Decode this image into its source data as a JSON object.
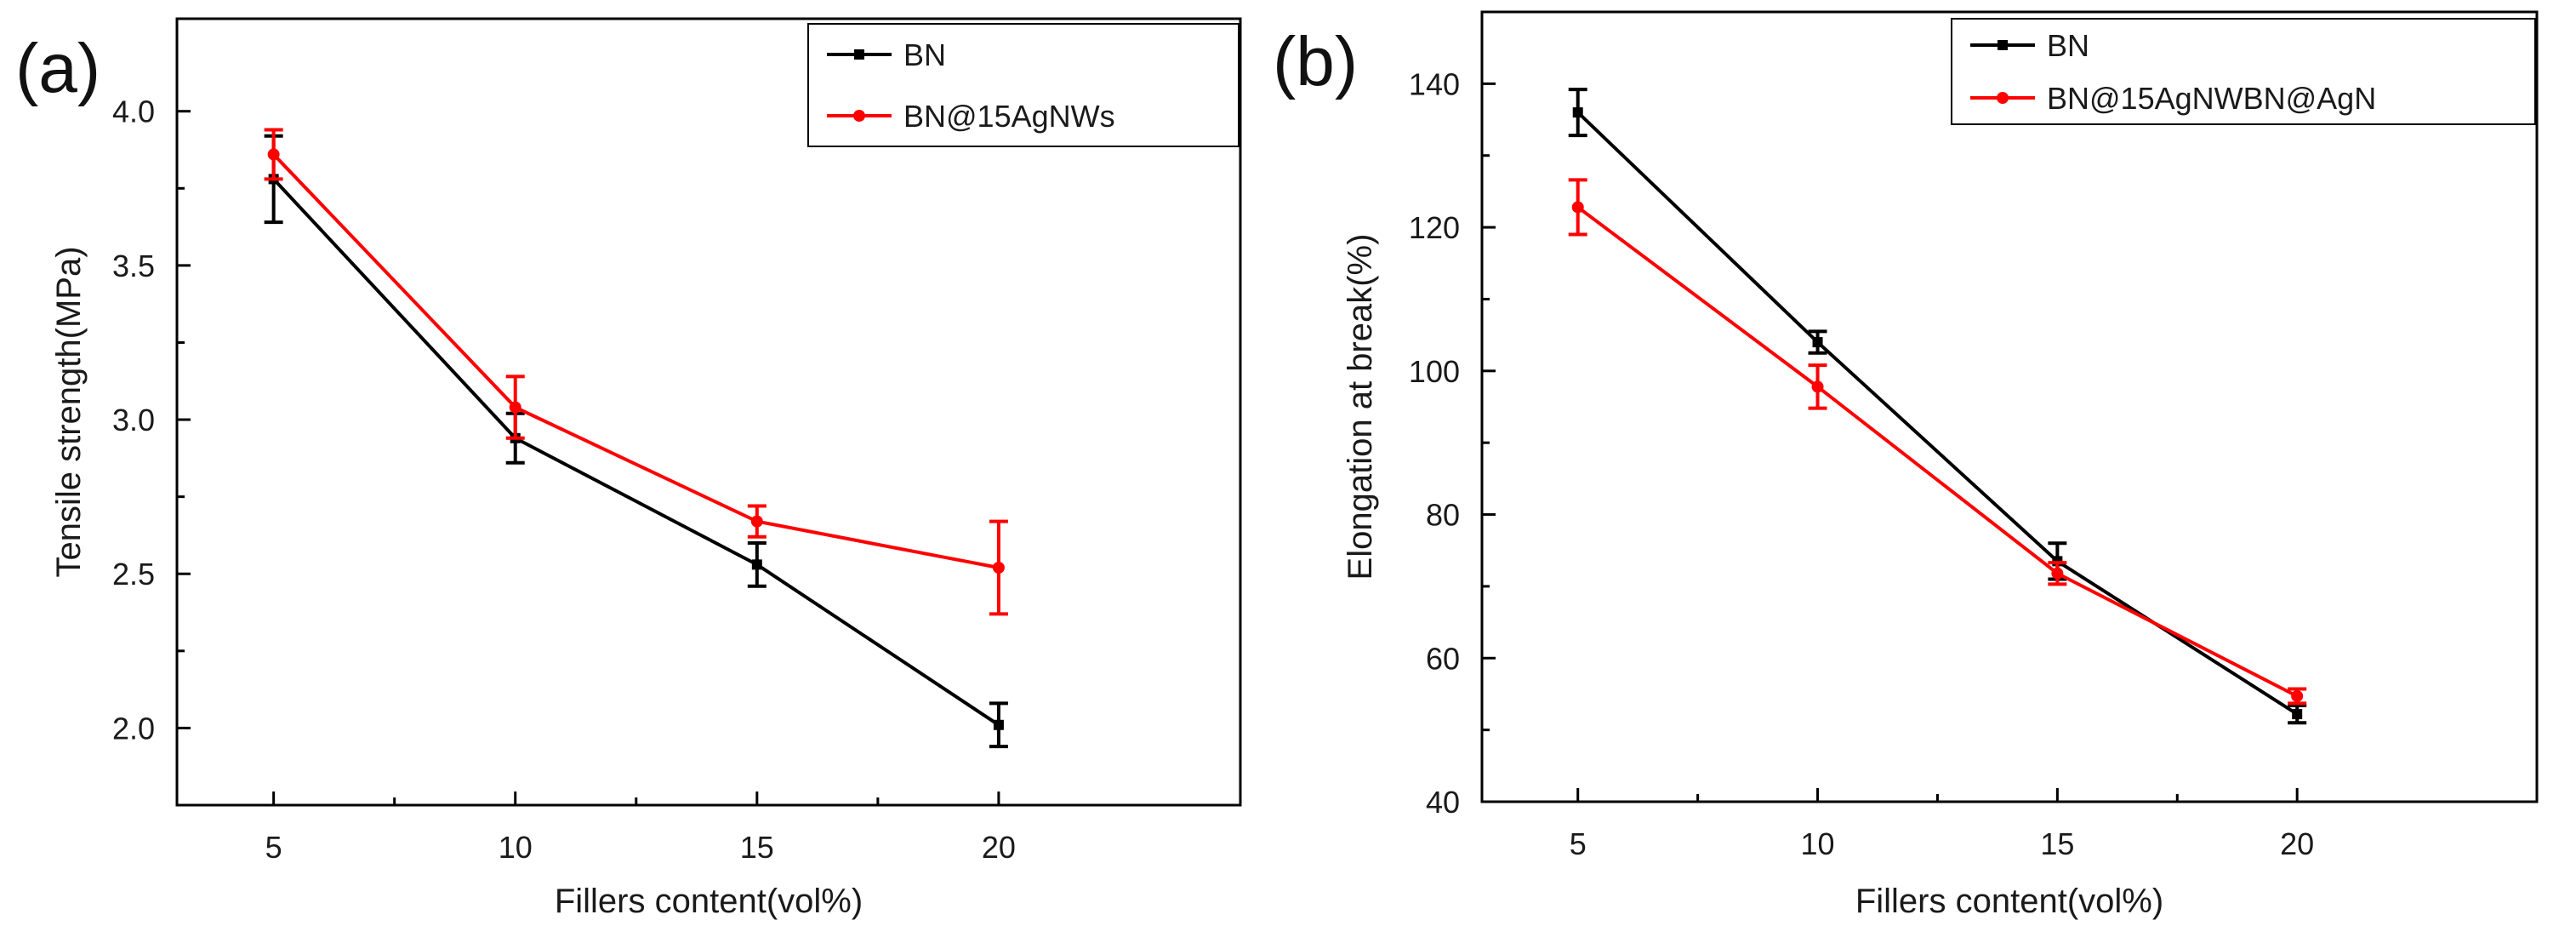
{
  "chart_data": [
    {
      "type": "line",
      "panel_label": "(a)",
      "xlabel": "Fillers content(vol%)",
      "ylabel": "Tensile strength(MPa)",
      "xlim": [
        3,
        25
      ],
      "ylim": [
        1.75,
        4.3
      ],
      "xticks": [
        5,
        10,
        15,
        20
      ],
      "yticks": [
        2.0,
        2.5,
        3.0,
        3.5,
        4.0
      ],
      "legend_position": "top-right",
      "series": [
        {
          "name": "BN",
          "color": "#000000",
          "marker": "square",
          "x": [
            5,
            10,
            15,
            20
          ],
          "y": [
            3.78,
            2.94,
            2.53,
            2.01
          ],
          "err": [
            0.14,
            0.08,
            0.07,
            0.07
          ]
        },
        {
          "name": "BN@15AgNWs",
          "color": "#ff0000",
          "marker": "circle",
          "x": [
            5,
            10,
            15,
            20
          ],
          "y": [
            3.86,
            3.04,
            2.67,
            2.52
          ],
          "err": [
            0.08,
            0.1,
            0.05,
            0.15
          ]
        }
      ]
    },
    {
      "type": "line",
      "panel_label": "(b)",
      "xlabel": "Fillers content(vol%)",
      "ylabel": "Elongation at break(%)",
      "xlim": [
        3,
        25
      ],
      "ylim": [
        40,
        150
      ],
      "xticks": [
        5,
        10,
        15,
        20
      ],
      "yticks": [
        40,
        60,
        80,
        100,
        120,
        140
      ],
      "legend_position": "top-right",
      "series": [
        {
          "name": "BN",
          "color": "#000000",
          "marker": "square",
          "x": [
            5,
            10,
            15,
            20
          ],
          "y": [
            136,
            104,
            73.5,
            52.2
          ],
          "err": [
            3.2,
            1.5,
            2.5,
            1.2
          ]
        },
        {
          "name": "BN@15AgNWBN@AgN",
          "color": "#ff0000",
          "marker": "circle",
          "x": [
            5,
            10,
            15,
            20
          ],
          "y": [
            122.8,
            97.8,
            71.8,
            54.7
          ],
          "err": [
            3.8,
            3.0,
            1.5,
            1.0
          ]
        }
      ]
    }
  ]
}
